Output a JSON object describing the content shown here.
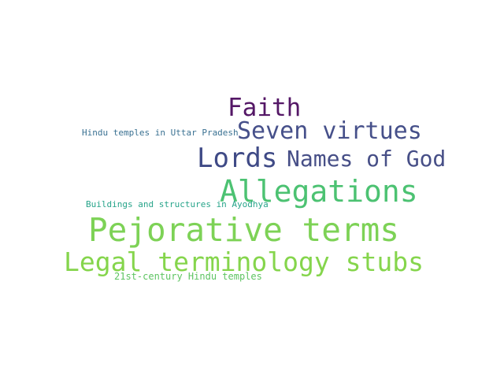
{
  "words": [
    {
      "text": "Faith",
      "color": "#541766"
    },
    {
      "text": "Seven virtues",
      "color": "#46508a"
    },
    {
      "text": "Hindu temples in Uttar Pradesh",
      "color": "#3a7192"
    },
    {
      "text": "Lords",
      "color": "#3f4a86"
    },
    {
      "text": "Names of God",
      "color": "#474f87"
    },
    {
      "text": "Allegations",
      "color": "#4cc272"
    },
    {
      "text": "Buildings and structures in Ayodhya",
      "color": "#27a48a"
    },
    {
      "text": "Pejorative terms",
      "color": "#7dd256"
    },
    {
      "text": "Legal terminology stubs",
      "color": "#85d54c"
    },
    {
      "text": "21st-century Hindu temples",
      "color": "#5ec462"
    }
  ]
}
